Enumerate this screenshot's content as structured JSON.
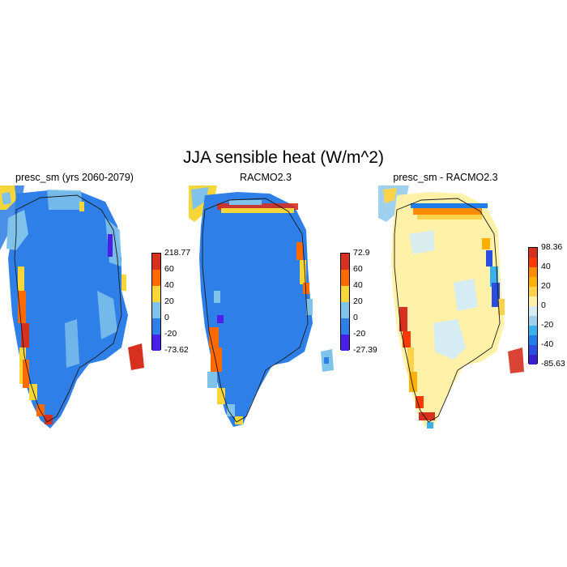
{
  "title": "JJA sensible heat (W/m^2)",
  "panels": [
    {
      "title": "presc_sm (yrs 2060-2079)",
      "colorbar": {
        "labels": [
          "218.77",
          "60",
          "40",
          "20",
          "0",
          "-20",
          "-73.62"
        ],
        "colors": [
          "#d7301f",
          "#ff6a00",
          "#f7d63a",
          "#7fc3ea",
          "#2f7fe8",
          "#4a1fe8"
        ]
      }
    },
    {
      "title": "RACMO2.3",
      "colorbar": {
        "labels": [
          "72.9",
          "60",
          "40",
          "20",
          "0",
          "-20",
          "-27.39"
        ],
        "colors": [
          "#d7301f",
          "#ff6a00",
          "#f7d63a",
          "#7fc3ea",
          "#2f7fe8",
          "#4a1fe8"
        ]
      }
    },
    {
      "title": "presc_sm - RACMO2.3",
      "colorbar": {
        "labels": [
          "98.36",
          "40",
          "20",
          "0",
          "-20",
          "-40",
          "-85.63"
        ],
        "colors": [
          "#d7301f",
          "#ff3a00",
          "#ff8c00",
          "#ffb000",
          "#ffd24a",
          "#fff2a8",
          "#d6ecf5",
          "#9fd1ef",
          "#3ab0ef",
          "#1e7de8",
          "#2a4fe0",
          "#3a1fd0"
        ]
      }
    }
  ]
}
